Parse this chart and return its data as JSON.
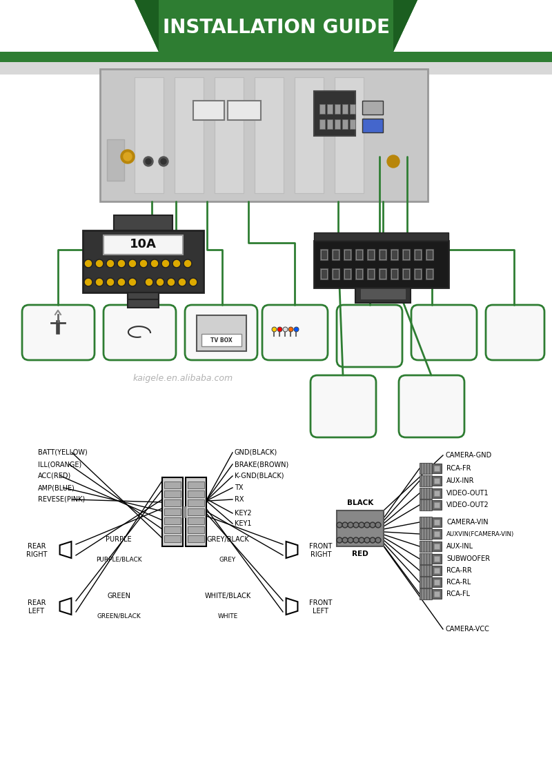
{
  "title": "INSTALLATION GUIDE",
  "title_bg": "#2e7d32",
  "title_bg_dark": "#1b5e20",
  "title_text_color": "#ffffff",
  "bg_color": "#ffffff",
  "left_labels": [
    "BATT(YELLOW)",
    "ILL(ORANGE)",
    "ACC(RED)",
    "AMP(BLUE)",
    "REVESE(PINK)"
  ],
  "right_labels": [
    "GND(BLACK)",
    "BRAKE(BROWN)",
    "K-GND(BLACK)",
    "TX",
    "RX"
  ],
  "key_labels": [
    "KEY2",
    "KEY1"
  ],
  "rca_labels_all": [
    "CAMERA-GND",
    "RCA-FR",
    "AUX-INR",
    "VIDEO-OUT1",
    "VIDEO-OUT2",
    "CAMERA-VIN",
    "AUXVIN(FCAMERA-VIN)",
    "AUX-INL",
    "SUBWOOFER",
    "RCA-RR",
    "RCA-RL",
    "RCA-FL",
    "CAMERA-VCC"
  ],
  "black_label": "BLACK",
  "red_label": "RED",
  "watermark": "kaigele.en.alibaba.com",
  "fuse_label": "10A",
  "line_color": "#2e7d32",
  "diagram_line_color": "#000000",
  "grey_bg": "#eeeeee"
}
